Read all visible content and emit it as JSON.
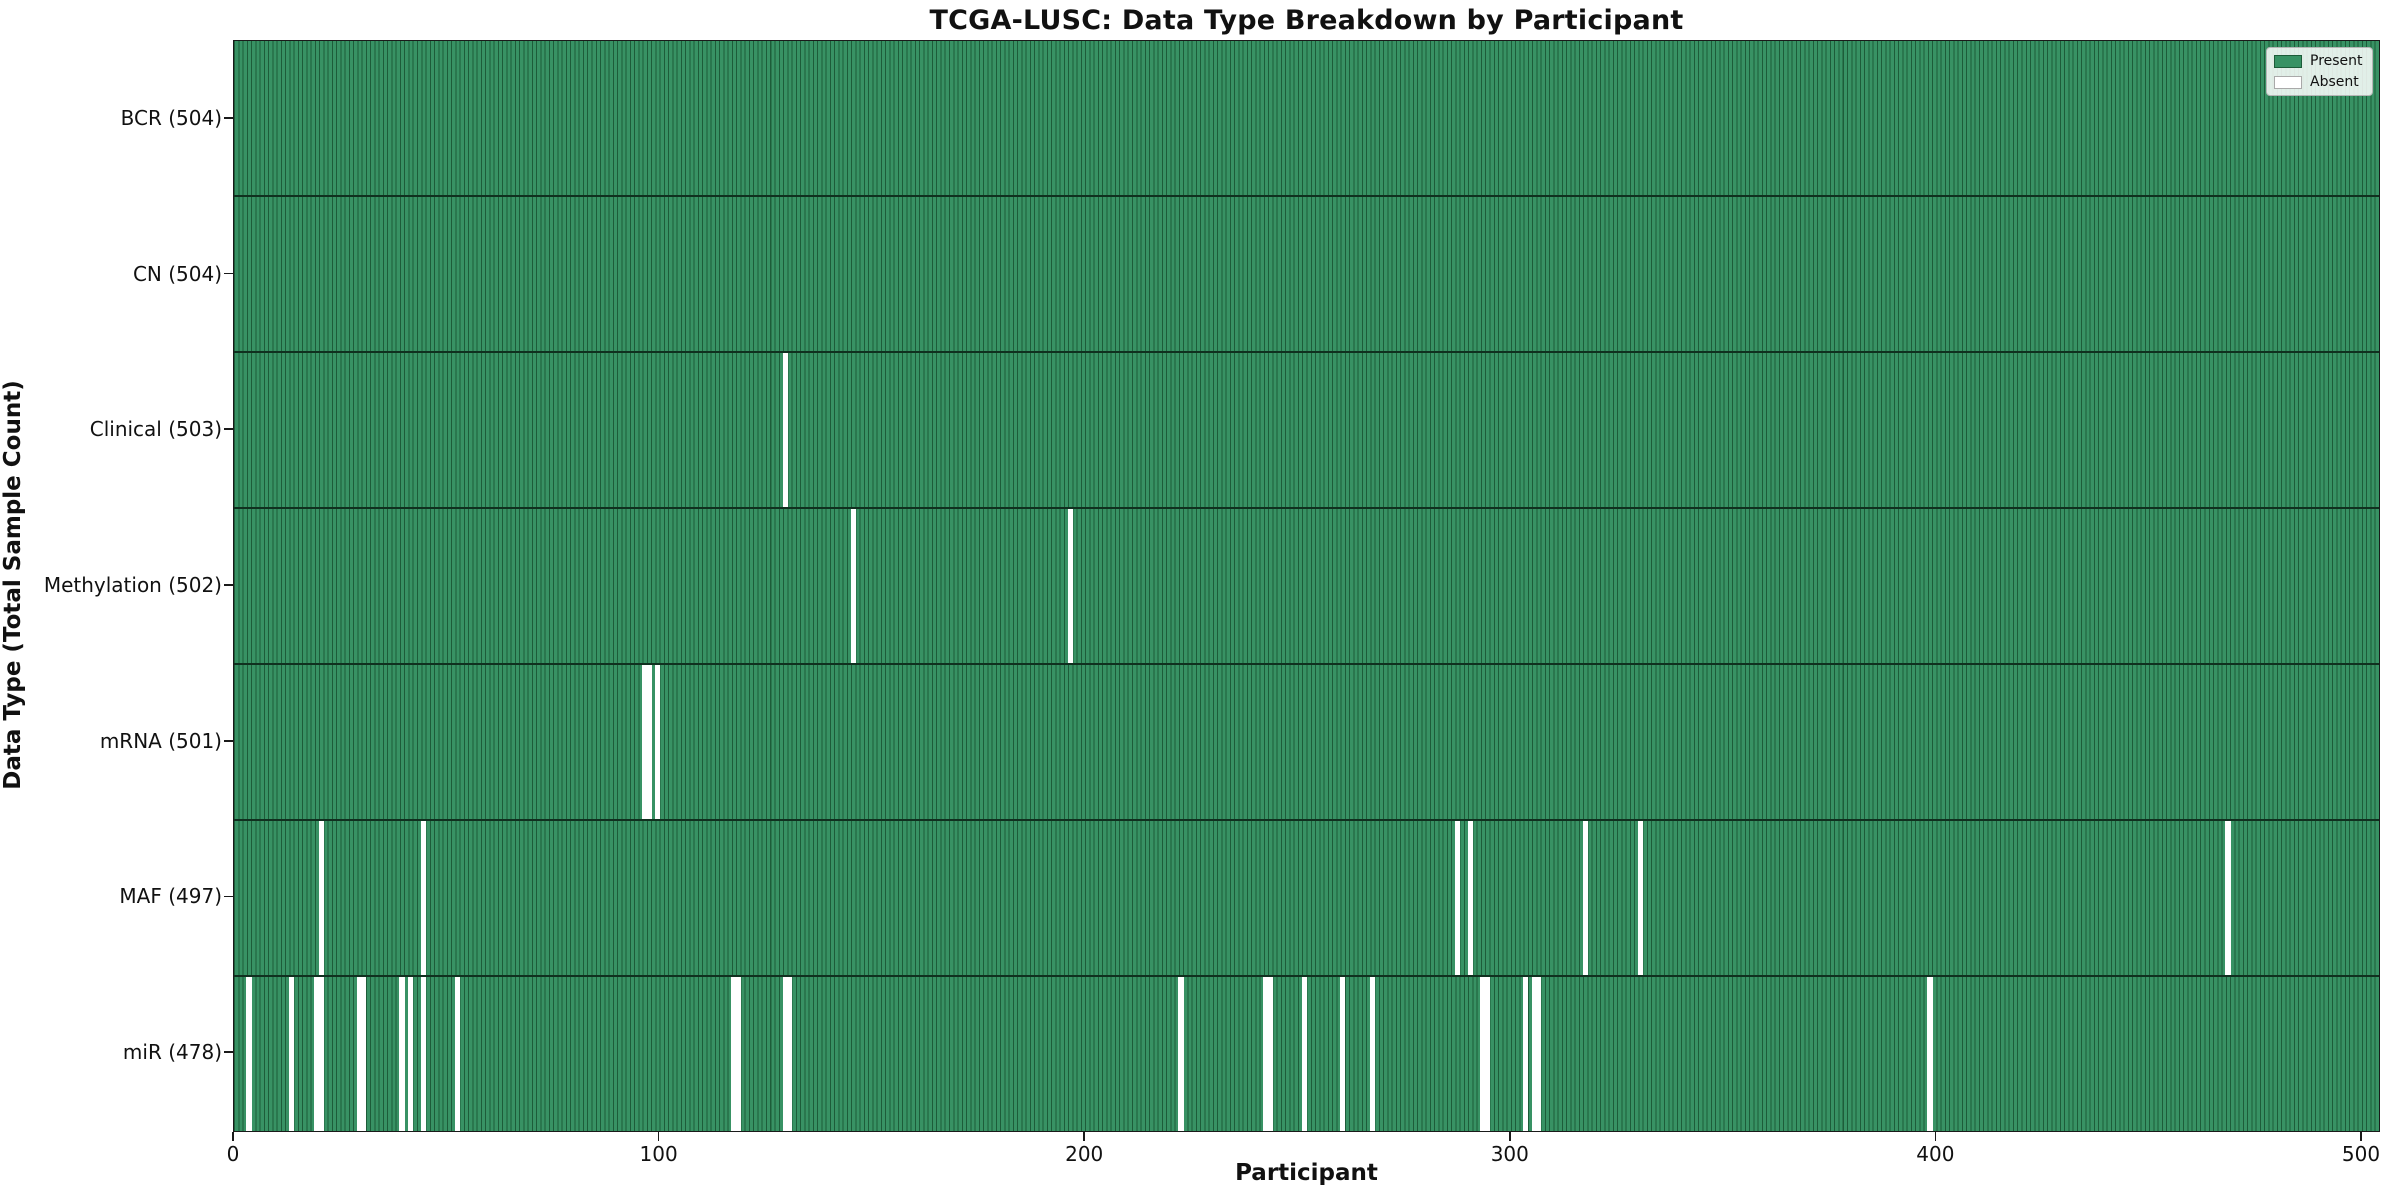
{
  "chart_data": {
    "type": "heatmap",
    "title": "TCGA-LUSC: Data Type Breakdown by Participant",
    "xlabel": "Participant",
    "ylabel": "Data Type (Total Sample Count)",
    "x_ticks": [
      0,
      100,
      200,
      300,
      400,
      500
    ],
    "x_range": [
      0,
      504
    ],
    "n_participants": 504,
    "grid": false,
    "legend": {
      "position": "upper-right",
      "items": [
        {
          "label": "Present",
          "color": "#389264"
        },
        {
          "label": "Absent",
          "color": "#ffffff"
        }
      ]
    },
    "colors": {
      "present_fill": "#389264",
      "bar_edge": "#1d5c39",
      "absent_fill": "#ffffff",
      "row_separator": "#10301f",
      "axes_edge": "#1a1a1a"
    },
    "rows": [
      {
        "label": "BCR (504)",
        "data_type": "BCR",
        "total_sample_count": 504,
        "absent_participants": []
      },
      {
        "label": "CN (504)",
        "data_type": "CN",
        "total_sample_count": 504,
        "absent_participants": []
      },
      {
        "label": "Clinical (503)",
        "data_type": "Clinical",
        "total_sample_count": 503,
        "absent_participants": [
          129
        ]
      },
      {
        "label": "Methylation (502)",
        "data_type": "Methylation",
        "total_sample_count": 502,
        "absent_participants": [
          145,
          196
        ]
      },
      {
        "label": "mRNA (501)",
        "data_type": "mRNA",
        "total_sample_count": 501,
        "absent_participants": [
          96,
          97,
          99
        ]
      },
      {
        "label": "MAF (497)",
        "data_type": "MAF",
        "total_sample_count": 497,
        "absent_participants": [
          20,
          44,
          287,
          290,
          317,
          330,
          468
        ]
      },
      {
        "label": "miR (478)",
        "data_type": "miR",
        "total_sample_count": 478,
        "absent_participants": [
          3,
          13,
          19,
          20,
          29,
          30,
          39,
          41,
          44,
          52,
          117,
          118,
          129,
          130,
          222,
          242,
          243,
          251,
          260,
          267,
          293,
          294,
          303,
          305,
          306,
          398
        ]
      }
    ]
  }
}
